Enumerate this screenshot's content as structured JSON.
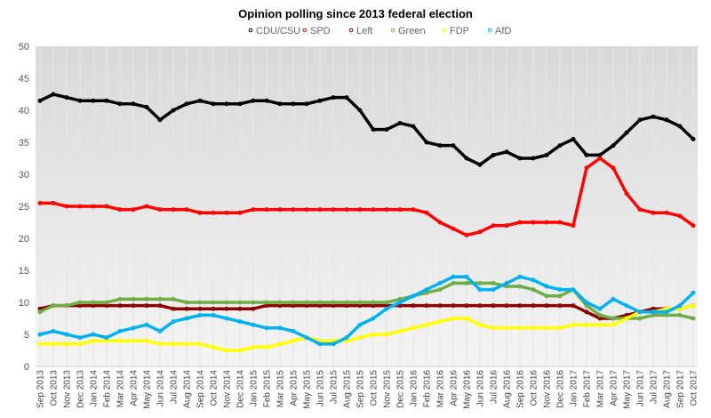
{
  "chart_data": {
    "type": "line",
    "title": "Opinion polling since 2013 federal election",
    "legend_position": "top",
    "xlabel": "",
    "ylabel": "",
    "ylim": [
      0,
      50
    ],
    "yticks": [
      0,
      5,
      10,
      15,
      20,
      25,
      30,
      35,
      40,
      45,
      50
    ],
    "grid": "vertical monthly lines",
    "categories": [
      "Sep 2013",
      "Oct 2013",
      "Nov 2013",
      "Dec 2013",
      "Jan 2014",
      "Feb 2014",
      "Mar 2014",
      "Apr 2014",
      "May 2014",
      "Jun 2014",
      "Jul 2014",
      "Aug 2014",
      "Sep 2014",
      "Oct 2014",
      "Nov 2014",
      "Dec 2014",
      "Jan 2015",
      "Feb 2015",
      "Mar 2015",
      "Apr 2015",
      "May 2015",
      "Jun 2015",
      "Jul 2015",
      "Aug 2015",
      "Sep 2015",
      "Oct 2015",
      "Nov 2015",
      "Dec 2015",
      "Jan 2016",
      "Feb 2016",
      "Mar 2016",
      "Apr 2016",
      "May 2016",
      "Jun 2016",
      "Jul 2016",
      "Aug 2016",
      "Sep 2016",
      "Oct 2016",
      "Nov 2016",
      "Dec 2016",
      "Jan 2017",
      "Feb 2017",
      "Mar 2017",
      "Apr 2017",
      "May 2017",
      "Jun 2017",
      "Jul 2017",
      "Aug 2017",
      "Sep 2017",
      "Oct 2017"
    ],
    "series": [
      {
        "name": "CDU/CSU",
        "color": "#000000",
        "values": [
          41.5,
          42.5,
          42,
          41.5,
          41.5,
          41.5,
          41,
          41,
          40.5,
          38.5,
          40,
          41,
          41.5,
          41,
          41,
          41,
          41.5,
          41.5,
          41,
          41,
          41,
          41.5,
          42,
          42,
          40,
          37,
          37,
          38,
          37.5,
          35,
          34.5,
          34.5,
          32.5,
          31.5,
          33,
          33.5,
          32.5,
          32.5,
          33,
          34.5,
          35.5,
          33,
          33,
          34.5,
          36.5,
          38.5,
          39,
          38.5,
          37.5,
          35.5
        ]
      },
      {
        "name": "SPD",
        "color": "#ff0000",
        "values": [
          25.5,
          25.5,
          25,
          25,
          25,
          25,
          24.5,
          24.5,
          25,
          24.5,
          24.5,
          24.5,
          24,
          24,
          24,
          24,
          24.5,
          24.5,
          24.5,
          24.5,
          24.5,
          24.5,
          24.5,
          24.5,
          24.5,
          24.5,
          24.5,
          24.5,
          24.5,
          24,
          22.5,
          21.5,
          20.5,
          21,
          22,
          22,
          22.5,
          22.5,
          22.5,
          22.5,
          22,
          31,
          32.5,
          31,
          27,
          24.5,
          24,
          24,
          23.5,
          22
        ]
      },
      {
        "name": "Left",
        "color": "#8b0000",
        "values": [
          9,
          9.5,
          9.5,
          9.5,
          9.5,
          9.5,
          9.5,
          9.5,
          9.5,
          9.5,
          9,
          9,
          9,
          9,
          9,
          9,
          9,
          9.5,
          9.5,
          9.5,
          9.5,
          9.5,
          9.5,
          9.5,
          9.5,
          9.5,
          9.5,
          9.5,
          9.5,
          9.5,
          9.5,
          9.5,
          9.5,
          9.5,
          9.5,
          9.5,
          9.5,
          9.5,
          9.5,
          9.5,
          9.5,
          8.5,
          7.5,
          7.5,
          8,
          8.5,
          9,
          9,
          9,
          9.5
        ]
      },
      {
        "name": "Green",
        "color": "#70ad47",
        "values": [
          8.5,
          9.5,
          9.5,
          10,
          10,
          10,
          10.5,
          10.5,
          10.5,
          10.5,
          10.5,
          10,
          10,
          10,
          10,
          10,
          10,
          10,
          10,
          10,
          10,
          10,
          10,
          10,
          10,
          10,
          10,
          10.5,
          11,
          11.5,
          12,
          13,
          13,
          13,
          13,
          12.5,
          12.5,
          12,
          11,
          11,
          12,
          9.5,
          8,
          7.5,
          7.5,
          7.5,
          8,
          8,
          8,
          7.5
        ]
      },
      {
        "name": "FDP",
        "color": "#ffff00",
        "values": [
          3.5,
          3.5,
          3.5,
          3.5,
          4,
          4,
          4,
          4,
          4,
          3.5,
          3.5,
          3.5,
          3.5,
          3,
          2.5,
          2.5,
          3,
          3,
          3.5,
          4,
          4.5,
          4,
          4,
          4,
          4.5,
          5,
          5,
          5.5,
          6,
          6.5,
          7,
          7.5,
          7.5,
          6.5,
          6,
          6,
          6,
          6,
          6,
          6,
          6.5,
          6.5,
          6.5,
          6.5,
          7.5,
          8.5,
          8.5,
          9,
          9,
          9.5
        ]
      },
      {
        "name": "AfD",
        "color": "#00b0f0",
        "values": [
          5,
          5.5,
          5,
          4.5,
          5,
          4.5,
          5.5,
          6,
          6.5,
          5.5,
          7,
          7.5,
          8,
          8,
          7.5,
          7,
          6.5,
          6,
          6,
          5.5,
          4.5,
          3.5,
          3.5,
          4.5,
          6.5,
          7.5,
          9,
          10,
          11,
          12,
          13,
          14,
          14,
          12,
          12,
          13,
          14,
          13.5,
          12.5,
          12,
          12,
          10,
          9,
          10.5,
          9.5,
          8.5,
          8.5,
          8.5,
          9.5,
          11.5
        ]
      }
    ]
  }
}
